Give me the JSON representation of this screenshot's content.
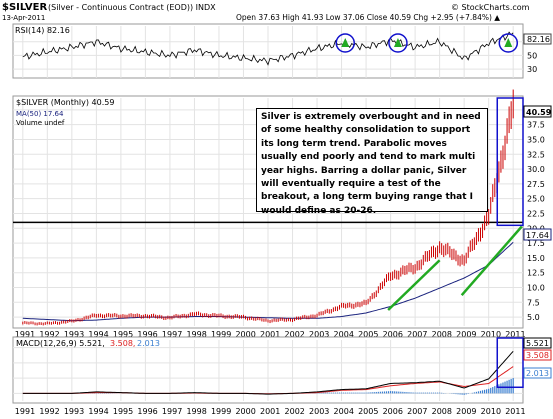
{
  "header": {
    "symbol": "$SILVER",
    "description": "(Silver - Continuous Contract (EOD)) INDX",
    "date": "13-Apr-2011",
    "source": "© StockCharts.com",
    "quote": "Open 37.63  High 41.93  Low 37.06  Close 40.59  Chg +2.95 (+7.84%) ▲"
  },
  "colors": {
    "price_bars": "#cc0000",
    "ma_line": "#1a237e",
    "trend_lines": "#22aa22",
    "highlight": "#1010cc",
    "rsi_line": "#000000",
    "macd_line": "#000000",
    "signal_line": "#dd2222",
    "histogram": "#3b7fd0"
  },
  "rsi_panel": {
    "legend": "RSI(14) 82.16",
    "value_label": "82.16"
  },
  "price_panel": {
    "legend_main": "$SILVER (Monthly) 40.59",
    "legend_ma": "MA(50) 17.64",
    "legend_vol": "Volume undef",
    "last_label": "40.59",
    "ma_label": "17.64"
  },
  "macd_panel": {
    "legend_macd": "MACD(12,26,9) 5.521,",
    "legend_signal": "3.508,",
    "legend_hist": "2.013",
    "macd_label": "5.521",
    "signal_label": "3.508",
    "hist_label": "2.013"
  },
  "annotation": "Silver is extremely overbought and in need of some healthy consolidation to support its long term trend.  Parabolic moves usually end poorly and tend to mark multi year highs.  Barring a dollar panic, Silver will eventually require a test of the breakout, a long term buying range that I would define as 20-26.",
  "chart_data": {
    "type": "line",
    "title": "$SILVER (Monthly)",
    "x": [
      "1991",
      "1992",
      "1993",
      "1994",
      "1995",
      "1996",
      "1997",
      "1998",
      "1999",
      "2000",
      "2001",
      "2002",
      "2003",
      "2004",
      "2005",
      "2006",
      "2007",
      "2008",
      "2009",
      "2010",
      "2011"
    ],
    "series": [
      {
        "name": "$SILVER (Monthly)",
        "values": [
          4.0,
          3.9,
          4.3,
          5.3,
          5.2,
          5.2,
          4.9,
          5.5,
          5.2,
          5.0,
          4.4,
          4.6,
          5.3,
          6.8,
          7.3,
          12.0,
          13.4,
          16.8,
          14.5,
          22.0,
          40.59
        ]
      },
      {
        "name": "MA(50)",
        "values": [
          4.8,
          4.6,
          4.4,
          4.5,
          4.8,
          5.0,
          5.0,
          5.1,
          5.1,
          5.0,
          4.9,
          4.8,
          4.8,
          5.1,
          5.7,
          6.8,
          8.2,
          9.9,
          11.6,
          13.8,
          17.64
        ]
      }
    ],
    "price_axis_ticks": [
      5.0,
      7.5,
      10.0,
      12.5,
      15.0,
      17.5,
      20.0,
      22.5,
      25.0,
      27.5,
      30.0,
      32.5,
      35.0,
      37.5,
      40.0
    ],
    "ylim": [
      3.5,
      42
    ],
    "horizontal_line": 21,
    "rsi": {
      "name": "RSI(14)",
      "last": 82.16,
      "levels": [
        30,
        50,
        70
      ],
      "ticks": [
        30,
        50,
        70
      ],
      "values": [
        48,
        55,
        62,
        70,
        60,
        55,
        50,
        58,
        50,
        46,
        42,
        50,
        60,
        68,
        62,
        72,
        62,
        70,
        45,
        68,
        82.16
      ]
    },
    "macd": {
      "macd": 5.521,
      "signal": 3.508,
      "histogram": 2.013,
      "ticks": [
        0,
        2,
        4,
        6
      ],
      "macd_values": [
        0,
        0,
        0,
        0.2,
        0.1,
        0,
        0,
        0.1,
        0,
        0,
        -0.1,
        0,
        0.2,
        0.5,
        0.6,
        1.3,
        1.4,
        1.6,
        0.7,
        1.9,
        5.521
      ],
      "signal_values": [
        0,
        0,
        0,
        0.1,
        0.1,
        0,
        0,
        0.05,
        0,
        0,
        -0.05,
        0,
        0.1,
        0.4,
        0.5,
        1.0,
        1.3,
        1.5,
        0.9,
        1.3,
        3.508
      ]
    },
    "legend_position": "top-left",
    "grid": true
  }
}
